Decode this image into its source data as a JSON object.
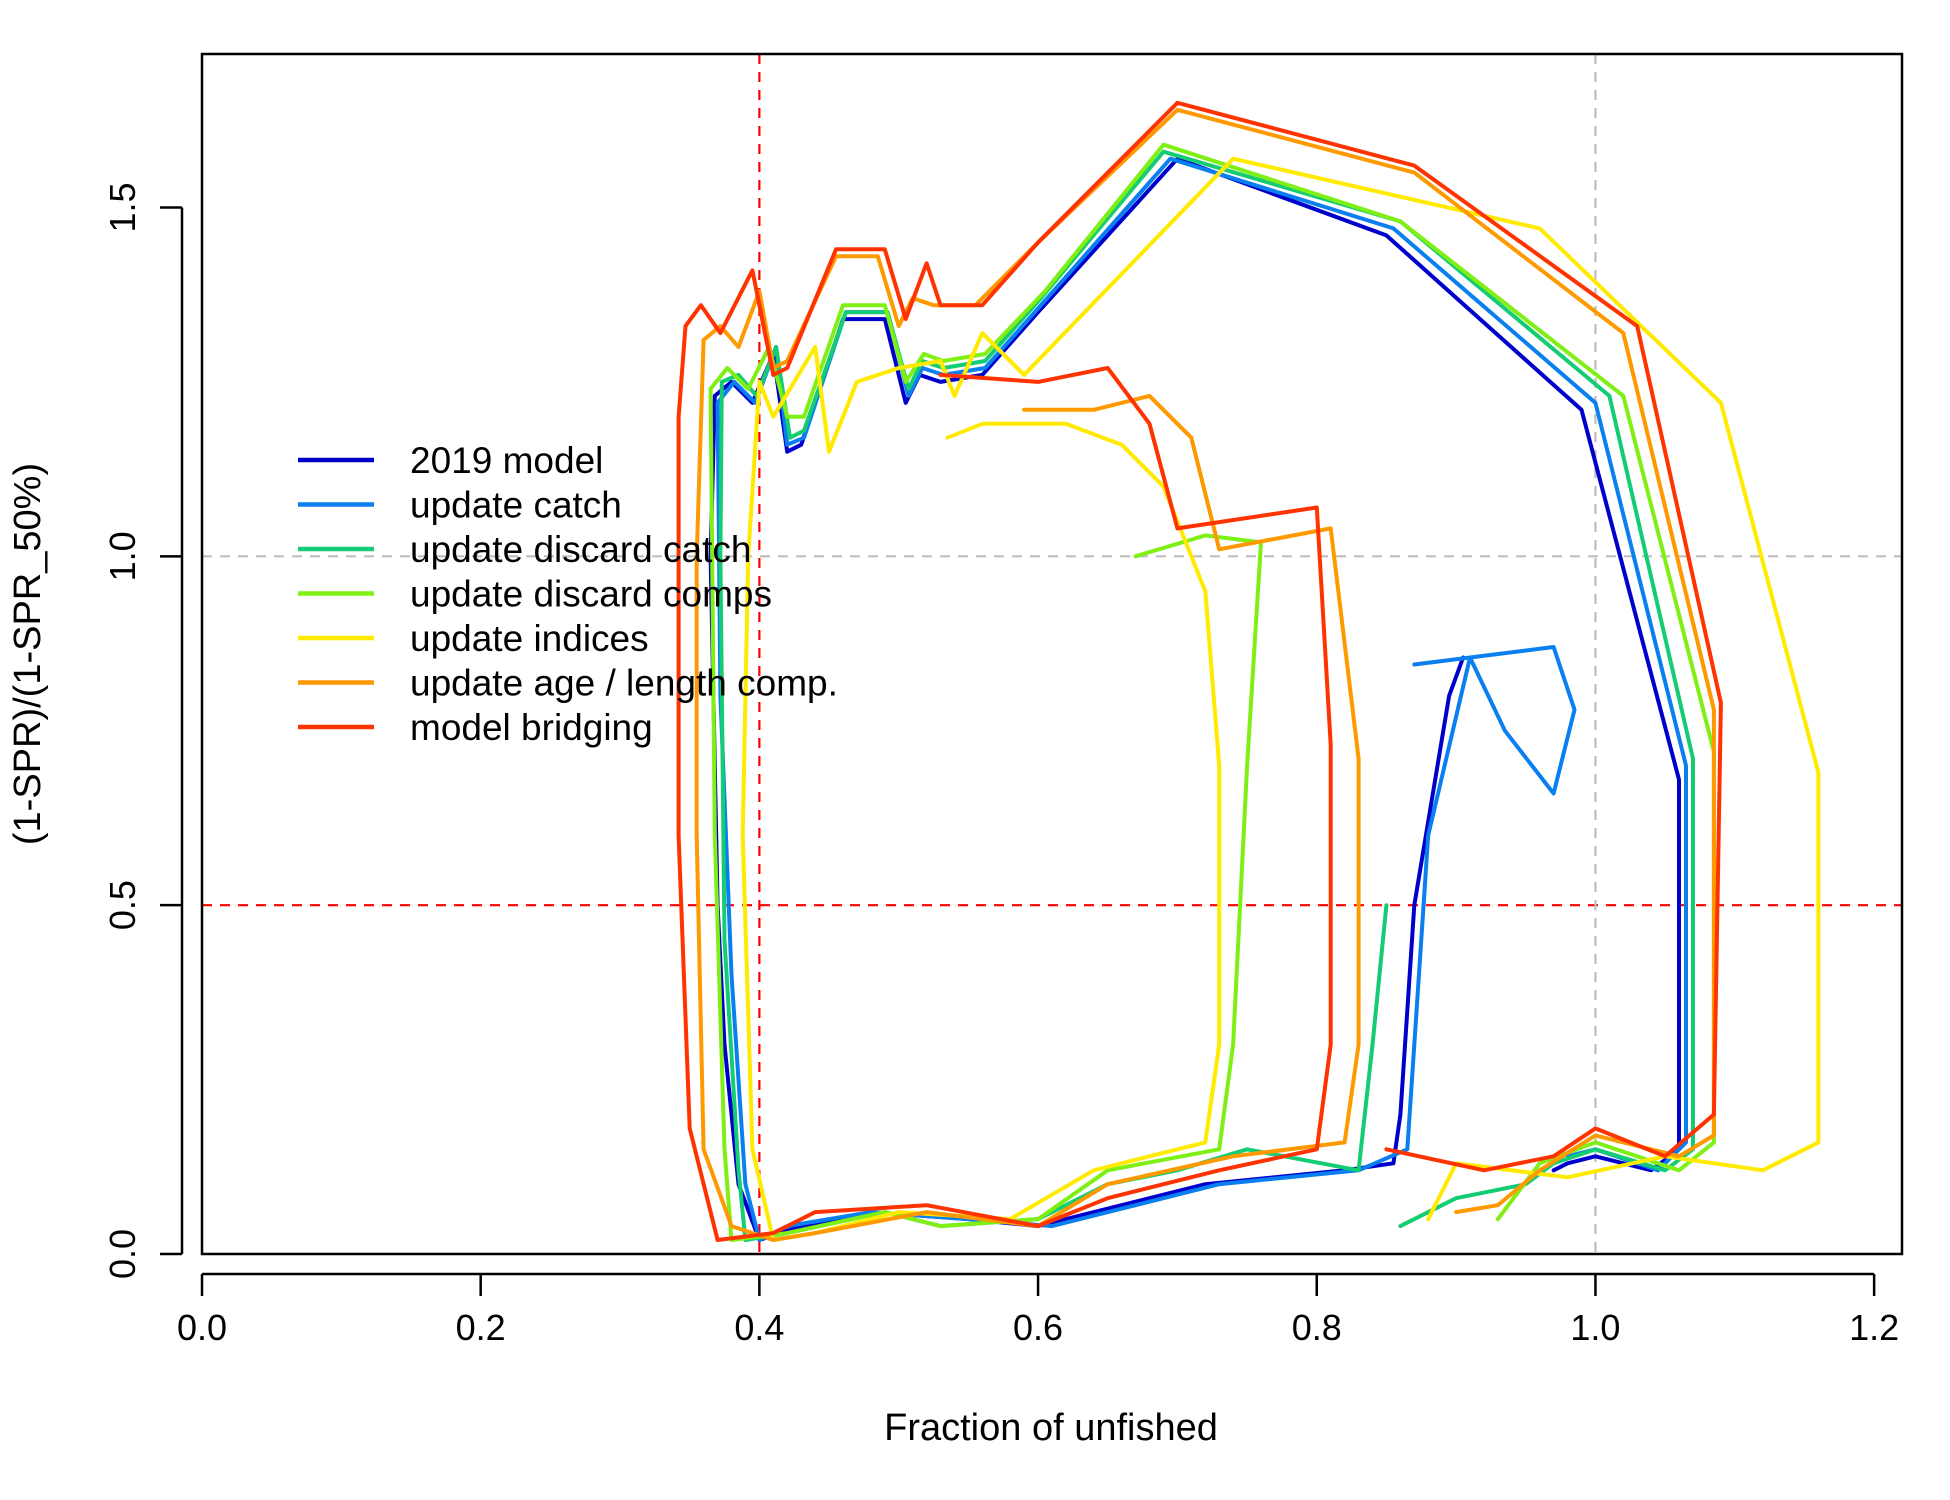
{
  "chart_data": {
    "type": "line",
    "title": "",
    "xlabel": "Fraction of unfished",
    "ylabel": "(1-SPR)/(1-SPR_50%)",
    "xlim": [
      0.0,
      1.22
    ],
    "ylim": [
      0.0,
      1.72
    ],
    "xticks": [
      "0.0",
      "0.2",
      "0.4",
      "0.6",
      "0.8",
      "1.0",
      "1.2"
    ],
    "yticks": [
      "0.0",
      "0.5",
      "1.0",
      "1.5"
    ],
    "xtick_values": [
      0.0,
      0.2,
      0.4,
      0.6,
      0.8,
      1.0,
      1.2
    ],
    "ytick_values": [
      0.0,
      0.5,
      1.0,
      1.5
    ],
    "reference_lines": [
      {
        "axis": "x",
        "value": 0.4,
        "color": "#ff0000",
        "style": "dashed"
      },
      {
        "axis": "y",
        "value": 0.5,
        "color": "#ff0000",
        "style": "dashed"
      },
      {
        "axis": "x",
        "value": 1.0,
        "color": "#bebebe",
        "style": "dashed"
      },
      {
        "axis": "y",
        "value": 1.0,
        "color": "#bebebe",
        "style": "dashed"
      }
    ],
    "grid": false,
    "legend_position": "upper-left",
    "series": [
      {
        "name": "2019 model",
        "color": "#0000CC",
        "points": [
          [
            0.905,
            0.855
          ],
          [
            0.895,
            0.8
          ],
          [
            0.87,
            0.5
          ],
          [
            0.86,
            0.2
          ],
          [
            0.855,
            0.13
          ],
          [
            0.82,
            0.12
          ],
          [
            0.72,
            0.1
          ],
          [
            0.6,
            0.04
          ],
          [
            0.55,
            0.05
          ],
          [
            0.48,
            0.06
          ],
          [
            0.43,
            0.04
          ],
          [
            0.4,
            0.02
          ],
          [
            0.385,
            0.1
          ],
          [
            0.375,
            0.3
          ],
          [
            0.37,
            0.5
          ],
          [
            0.365,
            1.0
          ],
          [
            0.368,
            1.23
          ],
          [
            0.38,
            1.25
          ],
          [
            0.395,
            1.22
          ],
          [
            0.41,
            1.29
          ],
          [
            0.42,
            1.15
          ],
          [
            0.43,
            1.16
          ],
          [
            0.46,
            1.34
          ],
          [
            0.49,
            1.34
          ],
          [
            0.505,
            1.22
          ],
          [
            0.515,
            1.26
          ],
          [
            0.53,
            1.25
          ],
          [
            0.56,
            1.26
          ],
          [
            0.6,
            1.35
          ],
          [
            0.7,
            1.57
          ],
          [
            0.85,
            1.46
          ],
          [
            0.99,
            1.21
          ],
          [
            1.06,
            0.68
          ],
          [
            1.06,
            0.15
          ],
          [
            1.04,
            0.12
          ],
          [
            1.0,
            0.14
          ],
          [
            0.98,
            0.13
          ],
          [
            0.97,
            0.12
          ]
        ]
      },
      {
        "name": "update catch",
        "color": "#0A7FEF",
        "points": [
          [
            0.87,
            0.845
          ],
          [
            0.97,
            0.87
          ],
          [
            0.985,
            0.78
          ],
          [
            0.97,
            0.66
          ],
          [
            0.935,
            0.75
          ],
          [
            0.91,
            0.855
          ],
          [
            0.88,
            0.6
          ],
          [
            0.87,
            0.3
          ],
          [
            0.865,
            0.15
          ],
          [
            0.83,
            0.12
          ],
          [
            0.73,
            0.1
          ],
          [
            0.61,
            0.04
          ],
          [
            0.55,
            0.05
          ],
          [
            0.48,
            0.06
          ],
          [
            0.42,
            0.04
          ],
          [
            0.4,
            0.02
          ],
          [
            0.39,
            0.1
          ],
          [
            0.38,
            0.4
          ],
          [
            0.372,
            0.8
          ],
          [
            0.37,
            1.22
          ],
          [
            0.382,
            1.25
          ],
          [
            0.397,
            1.22
          ],
          [
            0.412,
            1.3
          ],
          [
            0.42,
            1.16
          ],
          [
            0.432,
            1.17
          ],
          [
            0.462,
            1.35
          ],
          [
            0.492,
            1.35
          ],
          [
            0.507,
            1.23
          ],
          [
            0.517,
            1.27
          ],
          [
            0.532,
            1.26
          ],
          [
            0.562,
            1.27
          ],
          [
            0.602,
            1.36
          ],
          [
            0.695,
            1.57
          ],
          [
            0.855,
            1.47
          ],
          [
            1.0,
            1.22
          ],
          [
            1.065,
            0.7
          ],
          [
            1.065,
            0.16
          ],
          [
            1.045,
            0.12
          ],
          [
            1.0,
            0.15
          ],
          [
            0.98,
            0.14
          ]
        ]
      },
      {
        "name": "update discard catch",
        "color": "#14CC73",
        "points": [
          [
            0.85,
            0.5
          ],
          [
            0.84,
            0.3
          ],
          [
            0.83,
            0.12
          ],
          [
            0.75,
            0.15
          ],
          [
            0.7,
            0.12
          ],
          [
            0.65,
            0.1
          ],
          [
            0.6,
            0.05
          ],
          [
            0.53,
            0.04
          ],
          [
            0.49,
            0.06
          ],
          [
            0.42,
            0.03
          ],
          [
            0.39,
            0.02
          ],
          [
            0.385,
            0.12
          ],
          [
            0.375,
            0.45
          ],
          [
            0.372,
            1.0
          ],
          [
            0.373,
            1.25
          ],
          [
            0.385,
            1.26
          ],
          [
            0.398,
            1.23
          ],
          [
            0.412,
            1.3
          ],
          [
            0.422,
            1.17
          ],
          [
            0.432,
            1.18
          ],
          [
            0.462,
            1.35
          ],
          [
            0.492,
            1.35
          ],
          [
            0.507,
            1.24
          ],
          [
            0.517,
            1.28
          ],
          [
            0.532,
            1.27
          ],
          [
            0.562,
            1.28
          ],
          [
            0.602,
            1.37
          ],
          [
            0.69,
            1.58
          ],
          [
            0.86,
            1.48
          ],
          [
            1.01,
            1.23
          ],
          [
            1.07,
            0.71
          ],
          [
            1.07,
            0.15
          ],
          [
            1.05,
            0.12
          ],
          [
            1.0,
            0.15
          ],
          [
            0.97,
            0.13
          ],
          [
            0.95,
            0.1
          ],
          [
            0.9,
            0.08
          ],
          [
            0.86,
            0.04
          ]
        ]
      },
      {
        "name": "update discard comps",
        "color": "#7FEF14",
        "points": [
          [
            0.67,
            1.0
          ],
          [
            0.72,
            1.03
          ],
          [
            0.76,
            1.02
          ],
          [
            0.75,
            0.7
          ],
          [
            0.74,
            0.3
          ],
          [
            0.73,
            0.15
          ],
          [
            0.65,
            0.12
          ],
          [
            0.6,
            0.05
          ],
          [
            0.53,
            0.04
          ],
          [
            0.49,
            0.06
          ],
          [
            0.42,
            0.03
          ],
          [
            0.38,
            0.02
          ],
          [
            0.375,
            0.15
          ],
          [
            0.368,
            0.6
          ],
          [
            0.365,
            1.24
          ],
          [
            0.377,
            1.27
          ],
          [
            0.392,
            1.24
          ],
          [
            0.407,
            1.3
          ],
          [
            0.42,
            1.2
          ],
          [
            0.432,
            1.2
          ],
          [
            0.46,
            1.36
          ],
          [
            0.49,
            1.36
          ],
          [
            0.505,
            1.25
          ],
          [
            0.518,
            1.29
          ],
          [
            0.532,
            1.28
          ],
          [
            0.562,
            1.29
          ],
          [
            0.605,
            1.38
          ],
          [
            0.69,
            1.59
          ],
          [
            0.86,
            1.48
          ],
          [
            1.02,
            1.23
          ],
          [
            1.085,
            0.72
          ],
          [
            1.085,
            0.16
          ],
          [
            1.06,
            0.12
          ],
          [
            1.0,
            0.16
          ],
          [
            0.96,
            0.13
          ],
          [
            0.93,
            0.05
          ]
        ]
      },
      {
        "name": "update indices",
        "color": "#FFEA00",
        "points": [
          [
            0.535,
            1.17
          ],
          [
            0.56,
            1.19
          ],
          [
            0.62,
            1.19
          ],
          [
            0.66,
            1.16
          ],
          [
            0.69,
            1.1
          ],
          [
            0.72,
            0.95
          ],
          [
            0.73,
            0.7
          ],
          [
            0.73,
            0.3
          ],
          [
            0.72,
            0.16
          ],
          [
            0.64,
            0.12
          ],
          [
            0.58,
            0.05
          ],
          [
            0.5,
            0.06
          ],
          [
            0.44,
            0.03
          ],
          [
            0.41,
            0.02
          ],
          [
            0.395,
            0.15
          ],
          [
            0.388,
            0.6
          ],
          [
            0.392,
            1.0
          ],
          [
            0.4,
            1.25
          ],
          [
            0.41,
            1.2
          ],
          [
            0.44,
            1.3
          ],
          [
            0.45,
            1.15
          ],
          [
            0.47,
            1.25
          ],
          [
            0.5,
            1.27
          ],
          [
            0.53,
            1.28
          ],
          [
            0.54,
            1.23
          ],
          [
            0.56,
            1.32
          ],
          [
            0.59,
            1.26
          ],
          [
            0.74,
            1.57
          ],
          [
            0.96,
            1.47
          ],
          [
            1.09,
            1.22
          ],
          [
            1.16,
            0.69
          ],
          [
            1.16,
            0.16
          ],
          [
            1.12,
            0.12
          ],
          [
            1.05,
            0.14
          ],
          [
            0.98,
            0.11
          ],
          [
            0.9,
            0.13
          ],
          [
            0.88,
            0.05
          ]
        ]
      },
      {
        "name": "update age / length comp.",
        "color": "#FF9900",
        "points": [
          [
            0.59,
            1.21
          ],
          [
            0.64,
            1.21
          ],
          [
            0.68,
            1.23
          ],
          [
            0.71,
            1.17
          ],
          [
            0.73,
            1.01
          ],
          [
            0.81,
            1.04
          ],
          [
            0.83,
            0.71
          ],
          [
            0.83,
            0.3
          ],
          [
            0.82,
            0.16
          ],
          [
            0.74,
            0.14
          ],
          [
            0.65,
            0.1
          ],
          [
            0.6,
            0.04
          ],
          [
            0.52,
            0.06
          ],
          [
            0.44,
            0.03
          ],
          [
            0.41,
            0.02
          ],
          [
            0.38,
            0.04
          ],
          [
            0.36,
            0.15
          ],
          [
            0.355,
            0.6
          ],
          [
            0.355,
            1.0
          ],
          [
            0.36,
            1.31
          ],
          [
            0.372,
            1.33
          ],
          [
            0.385,
            1.3
          ],
          [
            0.4,
            1.38
          ],
          [
            0.41,
            1.27
          ],
          [
            0.42,
            1.28
          ],
          [
            0.455,
            1.43
          ],
          [
            0.485,
            1.43
          ],
          [
            0.5,
            1.33
          ],
          [
            0.51,
            1.37
          ],
          [
            0.525,
            1.36
          ],
          [
            0.555,
            1.36
          ],
          [
            0.6,
            1.45
          ],
          [
            0.7,
            1.64
          ],
          [
            0.87,
            1.55
          ],
          [
            1.02,
            1.32
          ],
          [
            1.085,
            0.78
          ],
          [
            1.085,
            0.17
          ],
          [
            1.06,
            0.14
          ],
          [
            1.0,
            0.17
          ],
          [
            0.96,
            0.12
          ],
          [
            0.93,
            0.07
          ],
          [
            0.9,
            0.06
          ]
        ]
      },
      {
        "name": "model bridging",
        "color": "#FF3300",
        "points": [
          [
            0.53,
            1.26
          ],
          [
            0.6,
            1.25
          ],
          [
            0.65,
            1.27
          ],
          [
            0.68,
            1.19
          ],
          [
            0.7,
            1.04
          ],
          [
            0.8,
            1.07
          ],
          [
            0.81,
            0.73
          ],
          [
            0.81,
            0.3
          ],
          [
            0.8,
            0.15
          ],
          [
            0.73,
            0.12
          ],
          [
            0.65,
            0.08
          ],
          [
            0.6,
            0.04
          ],
          [
            0.52,
            0.07
          ],
          [
            0.44,
            0.06
          ],
          [
            0.41,
            0.03
          ],
          [
            0.37,
            0.02
          ],
          [
            0.35,
            0.18
          ],
          [
            0.342,
            0.6
          ],
          [
            0.342,
            1.2
          ],
          [
            0.347,
            1.33
          ],
          [
            0.358,
            1.36
          ],
          [
            0.372,
            1.32
          ],
          [
            0.395,
            1.41
          ],
          [
            0.41,
            1.26
          ],
          [
            0.42,
            1.27
          ],
          [
            0.455,
            1.44
          ],
          [
            0.49,
            1.44
          ],
          [
            0.505,
            1.34
          ],
          [
            0.52,
            1.42
          ],
          [
            0.53,
            1.36
          ],
          [
            0.56,
            1.36
          ],
          [
            0.6,
            1.45
          ],
          [
            0.7,
            1.65
          ],
          [
            0.87,
            1.56
          ],
          [
            1.03,
            1.33
          ],
          [
            1.09,
            0.79
          ],
          [
            1.085,
            0.2
          ],
          [
            1.05,
            0.14
          ],
          [
            1.0,
            0.18
          ],
          [
            0.97,
            0.14
          ],
          [
            0.92,
            0.12
          ],
          [
            0.85,
            0.15
          ]
        ]
      }
    ]
  }
}
